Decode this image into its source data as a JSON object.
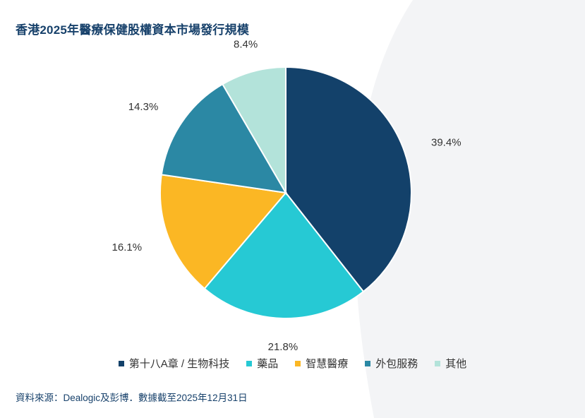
{
  "title": "香港2025年醫療保健股權資本市場發行規模",
  "source": "資料來源：Dealogic及彭博．數據截至2025年12月31日",
  "chart_data": {
    "type": "pie",
    "title": "香港2025年醫療保健股權資本市場發行規模",
    "categories": [
      "第十八A章 / 生物科技",
      "藥品",
      "智慧醫療",
      "外包服務",
      "其他"
    ],
    "values": [
      39.4,
      21.8,
      16.1,
      14.3,
      8.4
    ],
    "labels": [
      "39.4%",
      "21.8%",
      "16.1%",
      "14.3%",
      "8.4%"
    ],
    "colors": [
      "#13416a",
      "#26c9d4",
      "#fbb724",
      "#2b88a4",
      "#b3e3da"
    ],
    "start_angle": "12 o'clock",
    "direction": "clockwise",
    "legend_position": "bottom"
  }
}
